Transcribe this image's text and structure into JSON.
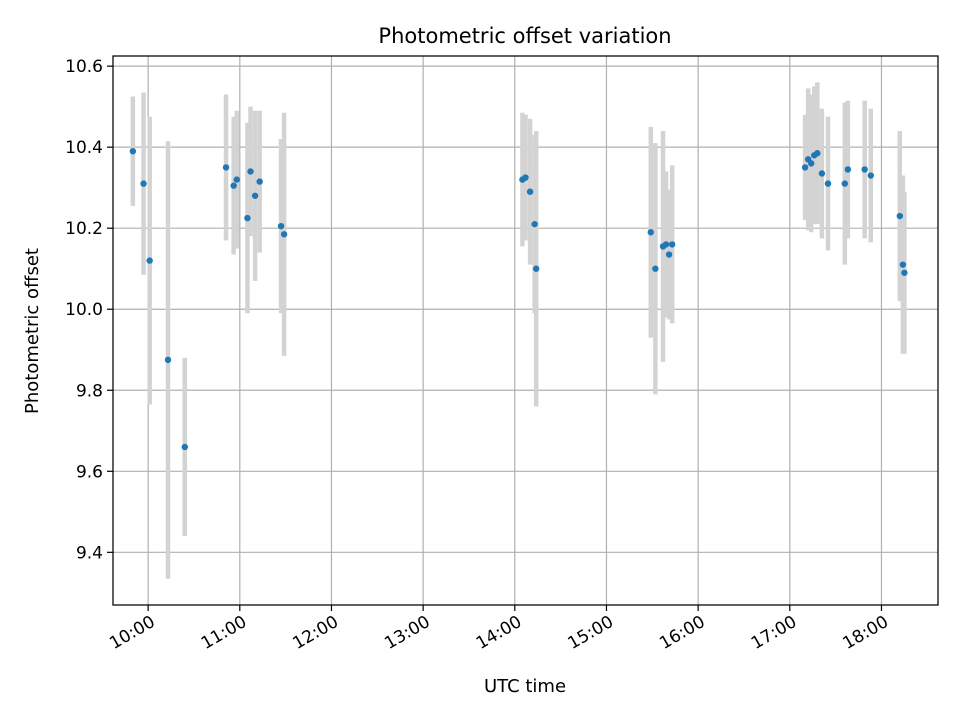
{
  "chart_data": {
    "type": "scatter",
    "title": "Photometric offset variation",
    "xlabel": "UTC time",
    "ylabel": "Photometric offset",
    "x_is_time": true,
    "xlim": [
      "09:37",
      "18:37"
    ],
    "ylim": [
      9.27,
      10.625
    ],
    "x_ticks": [
      "10:00",
      "11:00",
      "12:00",
      "13:00",
      "14:00",
      "15:00",
      "16:00",
      "17:00",
      "18:00"
    ],
    "y_ticks": [
      9.4,
      9.6,
      9.8,
      10.0,
      10.2,
      10.4,
      10.6
    ],
    "y_tick_labels": [
      "9.4",
      "9.6",
      "9.8",
      "10.0",
      "10.2",
      "10.4",
      "10.6"
    ],
    "grid": true,
    "colors": {
      "point": "#1f77b4",
      "errorbar": "#d3d3d3",
      "grid": "#b0b0b0",
      "axis": "#000000"
    },
    "series": [
      {
        "points": [
          {
            "x": "09:50",
            "y": 10.39,
            "yerr": 0.135
          },
          {
            "x": "09:57",
            "y": 10.31,
            "yerr": 0.225
          },
          {
            "x": "10:01",
            "y": 10.12,
            "yerr": 0.355
          },
          {
            "x": "10:13",
            "y": 9.875,
            "yerr": 0.54
          },
          {
            "x": "10:24",
            "y": 9.66,
            "yerr": 0.22
          },
          {
            "x": "10:51",
            "y": 10.35,
            "yerr": 0.18
          },
          {
            "x": "10:56",
            "y": 10.305,
            "yerr": 0.17
          },
          {
            "x": "10:58",
            "y": 10.32,
            "yerr": 0.17
          },
          {
            "x": "11:05",
            "y": 10.225,
            "yerr": 0.235
          },
          {
            "x": "11:07",
            "y": 10.34,
            "yerr": 0.16
          },
          {
            "x": "11:10",
            "y": 10.28,
            "yerr": 0.21
          },
          {
            "x": "11:13",
            "y": 10.315,
            "yerr": 0.175
          },
          {
            "x": "11:27",
            "y": 10.205,
            "yerr": 0.215
          },
          {
            "x": "11:29",
            "y": 10.185,
            "yerr": 0.3
          },
          {
            "x": "14:05",
            "y": 10.32,
            "yerr": 0.165
          },
          {
            "x": "14:07",
            "y": 10.325,
            "yerr": 0.155
          },
          {
            "x": "14:10",
            "y": 10.29,
            "yerr": 0.18
          },
          {
            "x": "14:13",
            "y": 10.21,
            "yerr": 0.22
          },
          {
            "x": "14:14",
            "y": 10.1,
            "yerr": 0.34
          },
          {
            "x": "15:29",
            "y": 10.19,
            "yerr": 0.26
          },
          {
            "x": "15:32",
            "y": 10.1,
            "yerr": 0.31
          },
          {
            "x": "15:37",
            "y": 10.155,
            "yerr": 0.285
          },
          {
            "x": "15:39",
            "y": 10.16,
            "yerr": 0.18
          },
          {
            "x": "15:41",
            "y": 10.135,
            "yerr": 0.16
          },
          {
            "x": "15:43",
            "y": 10.16,
            "yerr": 0.195
          },
          {
            "x": "17:10",
            "y": 10.35,
            "yerr": 0.13
          },
          {
            "x": "17:12",
            "y": 10.37,
            "yerr": 0.175
          },
          {
            "x": "17:14",
            "y": 10.36,
            "yerr": 0.17
          },
          {
            "x": "17:16",
            "y": 10.38,
            "yerr": 0.17
          },
          {
            "x": "17:18",
            "y": 10.385,
            "yerr": 0.175
          },
          {
            "x": "17:21",
            "y": 10.335,
            "yerr": 0.16
          },
          {
            "x": "17:25",
            "y": 10.31,
            "yerr": 0.165
          },
          {
            "x": "17:36",
            "y": 10.31,
            "yerr": 0.2
          },
          {
            "x": "17:38",
            "y": 10.345,
            "yerr": 0.17
          },
          {
            "x": "17:49",
            "y": 10.345,
            "yerr": 0.17
          },
          {
            "x": "17:53",
            "y": 10.33,
            "yerr": 0.165
          },
          {
            "x": "18:12",
            "y": 10.23,
            "yerr": 0.21
          },
          {
            "x": "18:14",
            "y": 10.11,
            "yerr": 0.22
          },
          {
            "x": "18:15",
            "y": 10.09,
            "yerr": 0.2
          }
        ]
      }
    ]
  }
}
